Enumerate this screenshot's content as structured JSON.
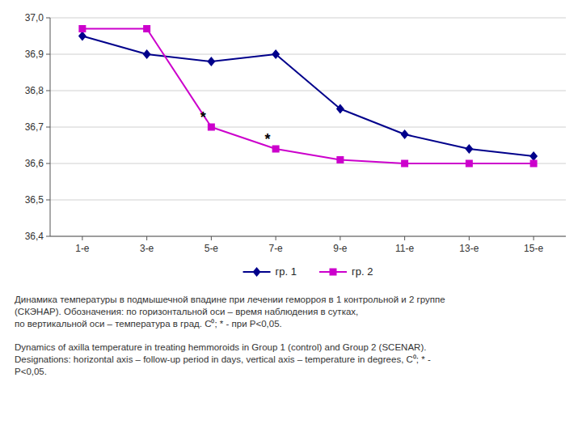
{
  "chart_data": {
    "type": "line",
    "categories": [
      "1-е",
      "3-е",
      "5-е",
      "7-е",
      "9-е",
      "11-е",
      "13-е",
      "15-е"
    ],
    "series": [
      {
        "name": "гр. 1",
        "color": "#00008B",
        "marker": "diamond",
        "values": [
          36.95,
          36.9,
          36.88,
          36.9,
          36.75,
          36.68,
          36.64,
          36.62
        ]
      },
      {
        "name": "гр. 2",
        "color": "#CC00CC",
        "marker": "square",
        "values": [
          36.97,
          36.97,
          36.7,
          36.64,
          36.61,
          36.6,
          36.6,
          36.6
        ]
      }
    ],
    "ylim": [
      36.4,
      37.0
    ],
    "yticks": [
      {
        "value": 36.4,
        "label": "36,4"
      },
      {
        "value": 36.5,
        "label": "36,5"
      },
      {
        "value": 36.6,
        "label": "36,6"
      },
      {
        "value": 36.7,
        "label": "36,7"
      },
      {
        "value": 36.8,
        "label": "36,8"
      },
      {
        "value": 36.9,
        "label": "36,9"
      },
      {
        "value": 37.0,
        "label": "37,0"
      }
    ],
    "grid": true,
    "legend": "bottom",
    "annotations": [
      {
        "text": "*",
        "x": "5-е",
        "y": 36.7
      },
      {
        "text": "*",
        "x": "7-е",
        "y": 36.64
      }
    ],
    "caption": [
      "Динамика температуры в подмышечной впадине при лечении геморроя в 1 контрольной и 2 группе\n(СКЭНАР). Обозначения: по горизонтальной оси – время наблюдения в сутках,\nпо вертикальной оси – температура в град. С⁰; * - при Р<0,05.",
      "Dynamics of axilla temperature in treating hemmoroids in Group 1 (control) and Group 2 (SCENAR).\nDesignations: horizontal axis – follow-up period in days, vertical axis – temperature in degrees, C⁰; * -\nР<0,05."
    ]
  }
}
